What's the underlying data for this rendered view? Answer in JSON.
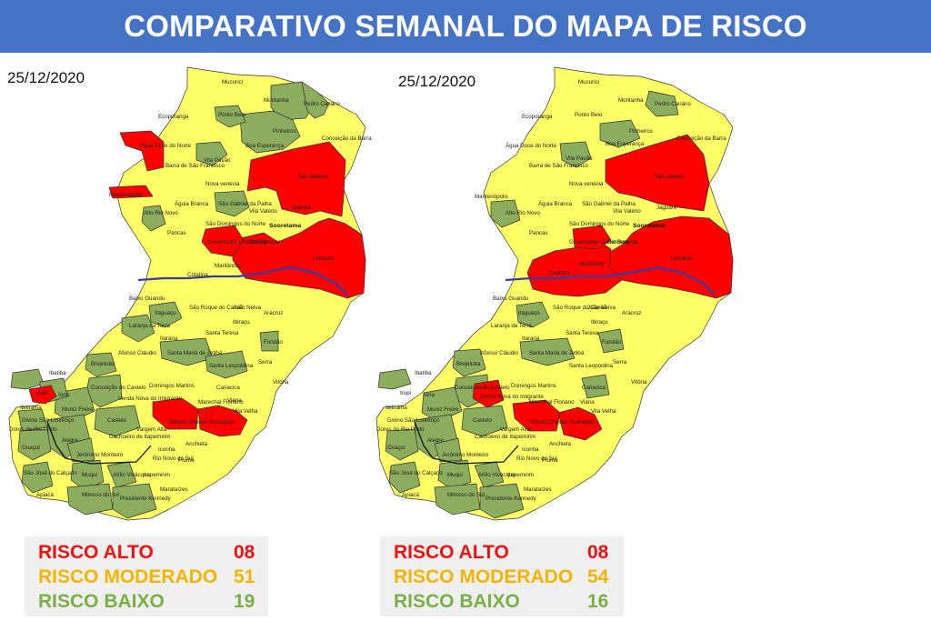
{
  "header": {
    "title": "COMPARATIVO SEMANAL DO MAPA DE RISCO"
  },
  "colors": {
    "high": "#ff0000",
    "moderate": "#ffff66",
    "low": "#8cac5e",
    "river": "#3a3aa0",
    "title_bg": "#4472c4"
  },
  "maps": [
    {
      "date": "25/12/2020",
      "legend": [
        {
          "label": "RISCO ALTO",
          "value": "08",
          "color": "#ee1111"
        },
        {
          "label": "RISCO MODERADO",
          "value": "51",
          "color": "#f5b400"
        },
        {
          "label": "RISCO BAIXO",
          "value": "19",
          "color": "#79b045"
        }
      ]
    },
    {
      "date": "25/12/2020",
      "legend": [
        {
          "label": "RISCO ALTO",
          "value": "08",
          "color": "#ee1111"
        },
        {
          "label": "RISCO MODERADO",
          "value": "54",
          "color": "#f5b400"
        },
        {
          "label": "RISCO BAIXO",
          "value": "16",
          "color": "#79b045"
        }
      ]
    }
  ],
  "municipalities": {
    "mucurici": "Mucurici",
    "montanha": "Montanha",
    "pedro_canario": "Pedro Canário",
    "ecoporanga": "Ecoporanga",
    "ponto_belo": "Ponto Belo",
    "pinheiros": "Pinheiros",
    "conceicao_barra": "Conceição da Barra",
    "boa_esperanca": "Boa Esperança",
    "agua_doce": "Água Doce do Norte",
    "barra_sf": "Barra de São Francisco",
    "vila_pavao": "Vila Pavão",
    "sao_mateus": "São Mateus",
    "nova_venecia": "Nova venécia",
    "mantenopolis": "Mantenópolis",
    "aguia_branca": "Águia Branca",
    "sao_gabriel": "São Gabriel da Palha",
    "jaguare": "Jaguaré",
    "vila_valerio": "Vila Valério",
    "alto_rio_novo": "Alto Rio Novo",
    "sooretama": "Sooretama",
    "sao_domingos": "São Domingos do Norte",
    "pancas": "Pancas",
    "governador_lindenberg": "Governador Lindenberg",
    "rio_bananal": "Rio Bananal",
    "linhares": "Linhares",
    "marilandia": "Marilândia",
    "colatina": "Colatina",
    "baixo_guandu": "Baixo Guandu",
    "itaguacu": "Itaguaçu",
    "sao_roque": "São Roque do Canaã",
    "joao_neiva": "João Neiva",
    "aracruz": "Aracruz",
    "ibiracu": "Ibiraçu",
    "laranja_terra": "Laranja da Terra",
    "itarana": "Itarana",
    "santa_teresa": "Santa Teresa",
    "fundao": "Fundão",
    "afonso_claudio": "Afonso Cláudio",
    "santa_maria": "Santa Maria de Jetibá",
    "santa_leopoldina": "Santa Leopoldina",
    "serra": "Serra",
    "brejetuba": "Brejetuba",
    "vitoria": "Vitória",
    "ibatiba": "Ibatiba",
    "conceicao_castelo": "Conceição do Castelo",
    "domingos_martins": "Domingos Martins",
    "cariacica": "Cariacica",
    "irupi": "Irupi",
    "iuna": "Iúna",
    "venda_nova": "Venda Nova do Imigrante",
    "marechal_floriano": "Marechal Floriano",
    "viana": "Viana",
    "ibitirama": "Ibitirama",
    "muniz_freire": "Muniz Freire",
    "vila_velha": "Vila Velha",
    "divino": "Divino São Lourenço",
    "castelo": "Castelo",
    "alfredo_chaves": "Alfredo Chaves",
    "guarapari": "Guarapari",
    "dores": "Dores do Rio Preto",
    "vargem_alta": "Vargem Alta",
    "alegre": "Alegre",
    "cachoeiro": "Cachoeiro de Itapemirim",
    "guacui": "Guaçuí",
    "iconha": "Iconha",
    "anchieta": "Anchieta",
    "jeronimo": "Jerônimo Monteiro",
    "rio_novo_sul": "Rio Novo do Sul",
    "piuma": "Piúma",
    "sao_jose_calcado": "São José do Calçado",
    "muqui": "Muqui",
    "atilio": "Atílio Vivácqua",
    "itapemirim": "Itapemirim",
    "apiaca": "Apiacá",
    "mimoso": "Mimoso do Sul",
    "presidente_kennedy": "Presidente Kennedy",
    "marataizes": "Marataízes"
  }
}
